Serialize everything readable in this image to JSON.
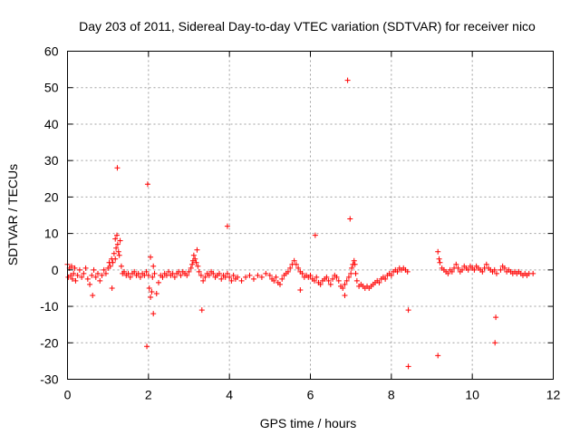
{
  "chart_data": {
    "type": "scatter",
    "title": "Day 203 of 2011, Sidereal Day-to-day VTEC variation (SDTVAR) for receiver nico",
    "xlabel": "GPS time / hours",
    "ylabel": "SDTVAR / TECUs",
    "xlim": [
      0,
      12
    ],
    "ylim": [
      -30,
      60
    ],
    "xticks": [
      0,
      2,
      4,
      6,
      8,
      10,
      12
    ],
    "yticks": [
      -30,
      -20,
      -10,
      0,
      10,
      20,
      30,
      40,
      50,
      60
    ],
    "grid": true,
    "marker": "+",
    "series_color": "#ff0000",
    "series": [
      {
        "name": "SDTVAR",
        "points": [
          [
            0.0,
            1.5
          ],
          [
            0.02,
            -2.0
          ],
          [
            0.05,
            0.5
          ],
          [
            0.08,
            -1.5
          ],
          [
            0.1,
            1.0
          ],
          [
            0.12,
            -2.5
          ],
          [
            0.15,
            -1.0
          ],
          [
            0.18,
            0.5
          ],
          [
            0.2,
            -3.0
          ],
          [
            0.25,
            -1.5
          ],
          [
            0.3,
            0.0
          ],
          [
            0.35,
            -2.0
          ],
          [
            0.4,
            -1.0
          ],
          [
            0.45,
            0.5
          ],
          [
            0.5,
            -2.5
          ],
          [
            0.55,
            -4.0
          ],
          [
            0.6,
            -1.5
          ],
          [
            0.65,
            0.0
          ],
          [
            0.7,
            -2.0
          ],
          [
            0.75,
            -1.0
          ],
          [
            0.8,
            -3.0
          ],
          [
            0.85,
            -1.5
          ],
          [
            0.9,
            0.0
          ],
          [
            0.95,
            -1.0
          ],
          [
            1.0,
            0.5
          ],
          [
            1.03,
            2.0
          ],
          [
            1.06,
            1.0
          ],
          [
            1.09,
            3.0
          ],
          [
            1.12,
            2.0
          ],
          [
            1.15,
            4.5
          ],
          [
            1.18,
            3.0
          ],
          [
            1.2,
            6.0
          ],
          [
            1.22,
            9.5
          ],
          [
            1.24,
            7.0
          ],
          [
            1.26,
            5.0
          ],
          [
            1.28,
            4.0
          ],
          [
            1.3,
            8.0
          ],
          [
            1.33,
            1.0
          ],
          [
            1.36,
            -1.0
          ],
          [
            1.4,
            -0.5
          ],
          [
            1.45,
            -1.5
          ],
          [
            1.5,
            -1.0
          ],
          [
            1.55,
            -2.0
          ],
          [
            1.6,
            -1.0
          ],
          [
            1.65,
            -0.5
          ],
          [
            1.7,
            -1.5
          ],
          [
            1.75,
            -1.0
          ],
          [
            1.8,
            -2.0
          ],
          [
            1.85,
            -1.0
          ],
          [
            1.9,
            -1.5
          ],
          [
            1.95,
            -0.5
          ],
          [
            2.0,
            -1.5
          ],
          [
            2.02,
            -5.0
          ],
          [
            2.05,
            -7.5
          ],
          [
            2.08,
            -6.0
          ],
          [
            2.1,
            -2.0
          ],
          [
            2.12,
            1.0
          ],
          [
            2.15,
            -1.0
          ],
          [
            2.2,
            -6.5
          ],
          [
            2.25,
            -3.5
          ],
          [
            2.3,
            -1.5
          ],
          [
            2.35,
            -2.0
          ],
          [
            2.4,
            -1.0
          ],
          [
            2.45,
            -1.5
          ],
          [
            2.5,
            -0.5
          ],
          [
            2.55,
            -1.5
          ],
          [
            2.6,
            -1.0
          ],
          [
            2.65,
            -2.0
          ],
          [
            2.7,
            -1.0
          ],
          [
            2.75,
            -0.5
          ],
          [
            2.8,
            -1.5
          ],
          [
            2.85,
            -0.5
          ],
          [
            2.9,
            -1.0
          ],
          [
            2.95,
            -1.5
          ],
          [
            3.0,
            -0.5
          ],
          [
            3.05,
            0.5
          ],
          [
            3.08,
            1.5
          ],
          [
            3.1,
            2.5
          ],
          [
            3.12,
            4.0
          ],
          [
            3.15,
            3.0
          ],
          [
            3.18,
            2.0
          ],
          [
            3.2,
            5.5
          ],
          [
            3.22,
            1.0
          ],
          [
            3.25,
            -0.5
          ],
          [
            3.3,
            -1.5
          ],
          [
            3.35,
            -3.0
          ],
          [
            3.4,
            -2.0
          ],
          [
            3.45,
            -1.0
          ],
          [
            3.5,
            -1.5
          ],
          [
            3.55,
            -0.5
          ],
          [
            3.6,
            -1.0
          ],
          [
            3.65,
            -2.0
          ],
          [
            3.7,
            -1.5
          ],
          [
            3.75,
            -1.0
          ],
          [
            3.8,
            -2.5
          ],
          [
            3.85,
            -1.5
          ],
          [
            3.9,
            -2.0
          ],
          [
            3.95,
            -1.0
          ],
          [
            4.0,
            -2.0
          ],
          [
            4.05,
            -3.0
          ],
          [
            4.1,
            -1.5
          ],
          [
            4.15,
            -2.5
          ],
          [
            4.2,
            -2.0
          ],
          [
            4.3,
            -3.0
          ],
          [
            4.4,
            -2.0
          ],
          [
            4.5,
            -1.5
          ],
          [
            4.6,
            -2.5
          ],
          [
            4.7,
            -1.5
          ],
          [
            4.8,
            -2.0
          ],
          [
            4.9,
            -1.0
          ],
          [
            5.0,
            -1.5
          ],
          [
            5.05,
            -2.5
          ],
          [
            5.1,
            -3.0
          ],
          [
            5.15,
            -2.0
          ],
          [
            5.2,
            -3.5
          ],
          [
            5.25,
            -4.0
          ],
          [
            5.3,
            -2.5
          ],
          [
            5.35,
            -1.5
          ],
          [
            5.4,
            -1.0
          ],
          [
            5.45,
            -0.5
          ],
          [
            5.5,
            0.5
          ],
          [
            5.55,
            1.5
          ],
          [
            5.6,
            2.5
          ],
          [
            5.65,
            1.5
          ],
          [
            5.7,
            0.5
          ],
          [
            5.75,
            -0.5
          ],
          [
            5.8,
            -1.0
          ],
          [
            5.85,
            -2.0
          ],
          [
            5.9,
            -1.5
          ],
          [
            5.95,
            -2.0
          ],
          [
            6.0,
            -1.5
          ],
          [
            6.05,
            -2.5
          ],
          [
            6.1,
            -3.0
          ],
          [
            6.15,
            -2.0
          ],
          [
            6.2,
            -3.5
          ],
          [
            6.25,
            -4.0
          ],
          [
            6.3,
            -3.0
          ],
          [
            6.35,
            -2.5
          ],
          [
            6.4,
            -2.0
          ],
          [
            6.45,
            -3.0
          ],
          [
            6.5,
            -4.0
          ],
          [
            6.55,
            -2.5
          ],
          [
            6.6,
            -1.5
          ],
          [
            6.65,
            -2.0
          ],
          [
            6.7,
            -3.0
          ],
          [
            6.75,
            -4.5
          ],
          [
            6.8,
            -5.0
          ],
          [
            6.85,
            -4.0
          ],
          [
            6.9,
            -3.0
          ],
          [
            6.95,
            -2.0
          ],
          [
            7.0,
            -1.0
          ],
          [
            7.02,
            0.5
          ],
          [
            7.05,
            1.5
          ],
          [
            7.08,
            2.5
          ],
          [
            7.1,
            1.5
          ],
          [
            7.12,
            -1.0
          ],
          [
            7.15,
            -3.0
          ],
          [
            7.2,
            -4.5
          ],
          [
            7.25,
            -4.0
          ],
          [
            7.3,
            -4.5
          ],
          [
            7.35,
            -5.0
          ],
          [
            7.4,
            -4.5
          ],
          [
            7.45,
            -5.0
          ],
          [
            7.5,
            -4.5
          ],
          [
            7.55,
            -4.0
          ],
          [
            7.6,
            -3.5
          ],
          [
            7.65,
            -3.0
          ],
          [
            7.7,
            -3.5
          ],
          [
            7.75,
            -2.5
          ],
          [
            7.8,
            -2.0
          ],
          [
            7.85,
            -2.5
          ],
          [
            7.9,
            -1.5
          ],
          [
            7.95,
            -1.0
          ],
          [
            8.0,
            -1.5
          ],
          [
            8.05,
            -0.5
          ],
          [
            8.1,
            0.0
          ],
          [
            8.15,
            -0.5
          ],
          [
            8.2,
            0.5
          ],
          [
            8.25,
            0.0
          ],
          [
            8.3,
            0.5
          ],
          [
            8.35,
            0.0
          ],
          [
            8.4,
            -0.5
          ],
          [
            9.15,
            5.0
          ],
          [
            9.18,
            3.0
          ],
          [
            9.2,
            2.0
          ],
          [
            9.25,
            0.5
          ],
          [
            9.3,
            0.0
          ],
          [
            9.35,
            -0.5
          ],
          [
            9.4,
            -1.0
          ],
          [
            9.45,
            0.0
          ],
          [
            9.5,
            -0.5
          ],
          [
            9.55,
            0.5
          ],
          [
            9.6,
            1.5
          ],
          [
            9.65,
            0.5
          ],
          [
            9.7,
            -0.5
          ],
          [
            9.75,
            0.0
          ],
          [
            9.8,
            1.0
          ],
          [
            9.85,
            0.5
          ],
          [
            9.9,
            0.0
          ],
          [
            9.95,
            1.0
          ],
          [
            10.0,
            0.5
          ],
          [
            10.05,
            0.0
          ],
          [
            10.1,
            1.0
          ],
          [
            10.15,
            0.5
          ],
          [
            10.2,
            0.0
          ],
          [
            10.25,
            -0.5
          ],
          [
            10.3,
            0.5
          ],
          [
            10.35,
            1.5
          ],
          [
            10.4,
            0.5
          ],
          [
            10.45,
            0.0
          ],
          [
            10.5,
            -0.5
          ],
          [
            10.55,
            0.0
          ],
          [
            10.6,
            -1.0
          ],
          [
            10.7,
            0.0
          ],
          [
            10.75,
            1.0
          ],
          [
            10.8,
            0.5
          ],
          [
            10.85,
            -0.5
          ],
          [
            10.9,
            0.0
          ],
          [
            10.95,
            -0.5
          ],
          [
            11.0,
            -1.0
          ],
          [
            11.05,
            -0.5
          ],
          [
            11.1,
            -1.0
          ],
          [
            11.15,
            -0.5
          ],
          [
            11.2,
            -1.0
          ],
          [
            11.25,
            -1.5
          ],
          [
            11.3,
            -1.0
          ],
          [
            11.35,
            -1.5
          ],
          [
            11.4,
            -1.0
          ],
          [
            11.5,
            -1.0
          ],
          [
            1.23,
            28.0
          ],
          [
            1.98,
            23.5
          ],
          [
            1.96,
            -21.0
          ],
          [
            2.12,
            -12.0
          ],
          [
            2.05,
            3.5
          ],
          [
            3.32,
            -11.0
          ],
          [
            3.95,
            12.0
          ],
          [
            6.12,
            9.5
          ],
          [
            6.92,
            52.0
          ],
          [
            6.98,
            14.0
          ],
          [
            8.42,
            -11.0
          ],
          [
            8.42,
            -26.5
          ],
          [
            9.15,
            -23.5
          ],
          [
            10.58,
            -13.0
          ],
          [
            10.56,
            -20.0
          ],
          [
            6.85,
            -7.0
          ],
          [
            1.1,
            -5.0
          ],
          [
            0.62,
            -7.0
          ],
          [
            5.75,
            -5.5
          ],
          [
            1.18,
            8.5
          ]
        ]
      }
    ]
  }
}
